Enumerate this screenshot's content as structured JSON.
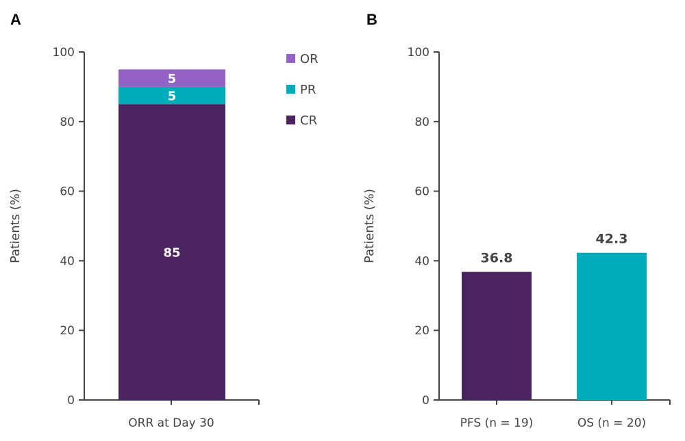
{
  "chart_data": [
    {
      "panel": "A",
      "type": "bar",
      "stacked": true,
      "categories": [
        "ORR at Day 30"
      ],
      "series": [
        {
          "name": "CR",
          "values": [
            85
          ],
          "color": "#4a235f"
        },
        {
          "name": "PR",
          "values": [
            5
          ],
          "color": "#00acb8"
        },
        {
          "name": "OR",
          "values": [
            5
          ],
          "color": "#9461c5"
        }
      ],
      "legend": {
        "placement": "top-right",
        "order": [
          "OR",
          "PR",
          "CR"
        ]
      },
      "xlabel": "",
      "ylabel": "Patients (%)",
      "ylim": [
        0,
        100
      ],
      "yticks": [
        0,
        20,
        40,
        60,
        80,
        100
      ],
      "grid": false
    },
    {
      "panel": "B",
      "type": "bar",
      "categories": [
        "PFS (n = 19)",
        "OS (n = 20)"
      ],
      "values": [
        36.8,
        42.3
      ],
      "value_labels": [
        "36.8",
        "42.3"
      ],
      "colors": [
        "#4a235f",
        "#00acb8"
      ],
      "xlabel": "",
      "ylabel": "Patients (%)",
      "ylim": [
        0,
        100
      ],
      "yticks": [
        0,
        20,
        40,
        60,
        80,
        100
      ],
      "grid": false
    }
  ]
}
